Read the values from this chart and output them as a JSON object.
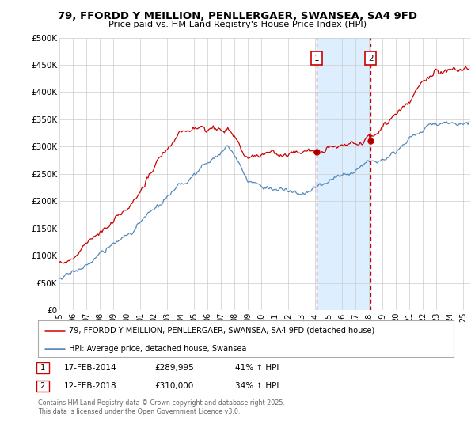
{
  "title": "79, FFORDD Y MEILLION, PENLLERGAER, SWANSEA, SA4 9FD",
  "subtitle": "Price paid vs. HM Land Registry's House Price Index (HPI)",
  "ylim": [
    0,
    500000
  ],
  "xlim_start": 1995.0,
  "xlim_end": 2025.5,
  "sale1_date": 2014.12,
  "sale1_price": 289995,
  "sale2_date": 2018.12,
  "sale2_price": 310000,
  "sale1_label": "1",
  "sale2_label": "2",
  "legend_line1": "79, FFORDD Y MEILLION, PENLLERGAER, SWANSEA, SA4 9FD (detached house)",
  "legend_line2": "HPI: Average price, detached house, Swansea",
  "footer": "Contains HM Land Registry data © Crown copyright and database right 2025.\nThis data is licensed under the Open Government Licence v3.0.",
  "red_color": "#cc0000",
  "blue_color": "#5588bb",
  "shade_color": "#ddeeff",
  "background_color": "#ffffff",
  "grid_color": "#cccccc",
  "ytick_labels": [
    "£0",
    "£50K",
    "£100K",
    "£150K",
    "£200K",
    "£250K",
    "£300K",
    "£350K",
    "£400K",
    "£450K",
    "£500K"
  ],
  "ytick_vals": [
    0,
    50000,
    100000,
    150000,
    200000,
    250000,
    300000,
    350000,
    400000,
    450000,
    500000
  ]
}
